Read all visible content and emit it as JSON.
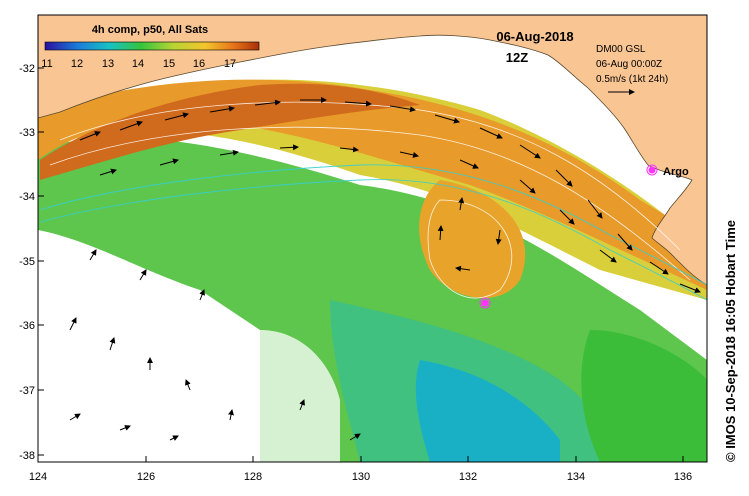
{
  "map": {
    "composite_label": "4h comp, p50, All Sats",
    "date": "06-Aug-2018",
    "time": "12Z",
    "altimetry_label": "DM00 GSL",
    "altimetry_time": "06-Aug 00:00Z",
    "current_scale": "0.5m/s (1kt 24h)",
    "float_label": "Argo",
    "credit": "© IMOS 10-Sep-2018 16:05 Hobart Time",
    "colorbar_ticks": [
      "11",
      "12",
      "13",
      "14",
      "15",
      "16",
      "17"
    ],
    "lat_ticks": [
      "-32",
      "-33",
      "-34",
      "-35",
      "-36",
      "-37",
      "-38"
    ],
    "lon_ticks": [
      "124",
      "126",
      "128",
      "130",
      "132",
      "134",
      "136"
    ],
    "colors": {
      "land": "#f9c593",
      "sst_warm": "#d35f00",
      "sst_mid": "#e6c53b",
      "sst_cool": "#5cc733",
      "sst_cold": "#16a9b7",
      "argo": "#ff35ff"
    }
  }
}
